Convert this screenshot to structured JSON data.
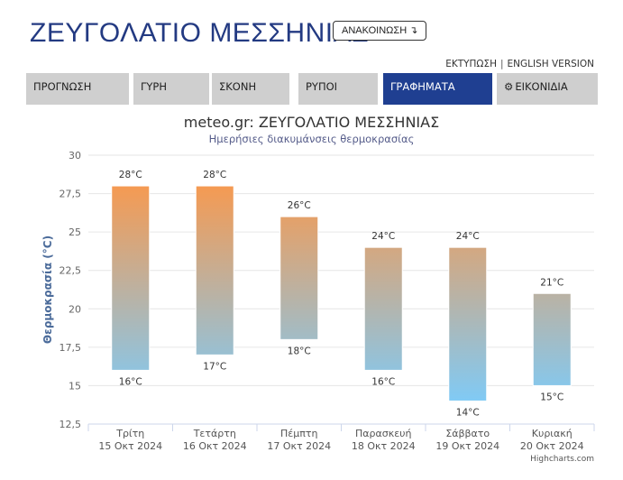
{
  "header": {
    "title": "ΖΕΥΓΟΛΑΤΙΟ ΜΕΣΣΗΝΙΑΣ",
    "announce_label": "ΑΝΑΚΟΙΝΩΣΗ",
    "announce_icon": "↴"
  },
  "top_links": {
    "print": "ΕΚΤΥΠΩΣΗ",
    "separator": "|",
    "english": "ENGLISH VERSION"
  },
  "nav": {
    "tabs": [
      {
        "label": "ΠΡΟΓΝΩΣΗ",
        "active": false
      },
      {
        "label": "ΓΥΡΗ",
        "active": false
      },
      {
        "label": "ΣΚΟΝΗ",
        "active": false
      },
      {
        "label": "ΡΥΠΟΙ",
        "active": false
      },
      {
        "label": "ΓΡΑΦΗΜΑΤΑ",
        "active": true
      },
      {
        "label": "ΕΙΚΟΝΙΔΙΑ",
        "active": false,
        "icon": "gear-icon"
      }
    ]
  },
  "credits": "Highcharts.com",
  "chart_data": {
    "type": "columnrange",
    "title": "meteo.gr: ΖΕΥΓΟΛΑΤΙΟ ΜΕΣΣΗΝΙΑΣ",
    "subtitle": "Ημερήσιες διακυμάνσεις θερμοκρασίας",
    "ylabel": "Θερμοκρασία (°C)",
    "ylim": [
      12.5,
      30
    ],
    "yticks": [
      12.5,
      15,
      17.5,
      20,
      22.5,
      25,
      27.5,
      30
    ],
    "ytick_labels": [
      "12,5",
      "15",
      "17,5",
      "20",
      "22,5",
      "25",
      "27,5",
      "30"
    ],
    "grid": true,
    "categories": [
      {
        "day": "Τρίτη",
        "date": "15 Οκτ 2024"
      },
      {
        "day": "Τετάρτη",
        "date": "16 Οκτ 2024"
      },
      {
        "day": "Πέμπτη",
        "date": "17 Οκτ 2024"
      },
      {
        "day": "Παρασκευή",
        "date": "18 Οκτ 2024"
      },
      {
        "day": "Σάββατο",
        "date": "19 Οκτ 2024"
      },
      {
        "day": "Κυριακή",
        "date": "20 Οκτ 2024"
      }
    ],
    "low": [
      16,
      17,
      18,
      16,
      14,
      15
    ],
    "high": [
      28,
      28,
      26,
      24,
      24,
      21
    ],
    "low_labels": [
      "16°C",
      "17°C",
      "18°C",
      "16°C",
      "14°C",
      "15°C"
    ],
    "high_labels": [
      "28°C",
      "28°C",
      "26°C",
      "24°C",
      "24°C",
      "21°C"
    ],
    "colors": {
      "warm": "#f59a52",
      "cool": "#80caf5",
      "grid": "#e6e6e6",
      "axis": "#ccd6eb",
      "ylabel": "#4b6b9a"
    }
  }
}
